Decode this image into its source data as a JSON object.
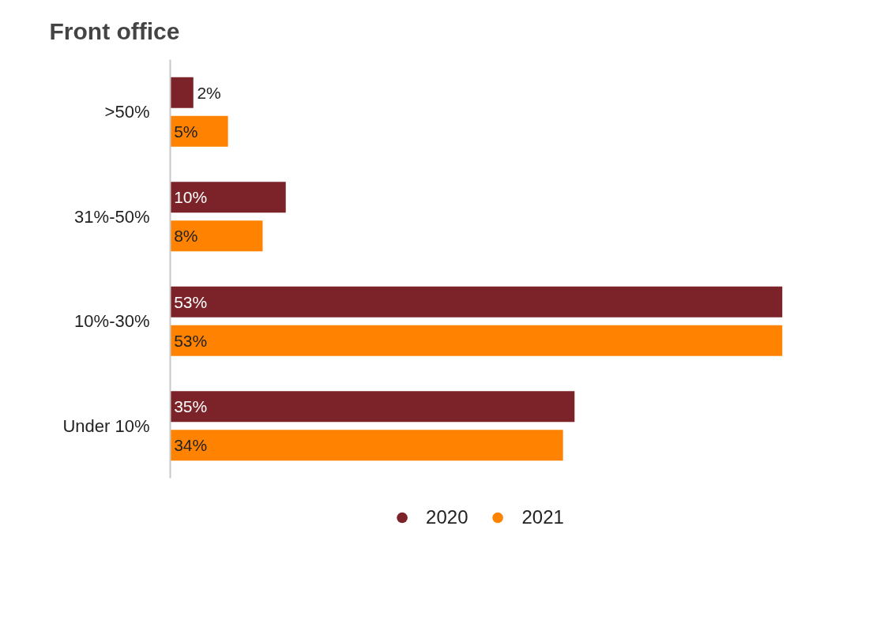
{
  "chart_data": {
    "type": "bar",
    "orientation": "horizontal",
    "title": "Front office",
    "categories": [
      ">50%",
      "31%-50%",
      "10%-30%",
      "Under 10%"
    ],
    "series": [
      {
        "name": "2020",
        "color": "#7b2328",
        "values": [
          2,
          10,
          53,
          35
        ],
        "value_labels": [
          "2%",
          "10%",
          "53%",
          "35%"
        ]
      },
      {
        "name": "2021",
        "color": "#ff8300",
        "values": [
          5,
          8,
          53,
          34
        ],
        "value_labels": [
          "5%",
          "8%",
          "53%",
          "34%"
        ]
      }
    ],
    "tick_labels": "y",
    "grid": false,
    "legend": "bottom"
  }
}
